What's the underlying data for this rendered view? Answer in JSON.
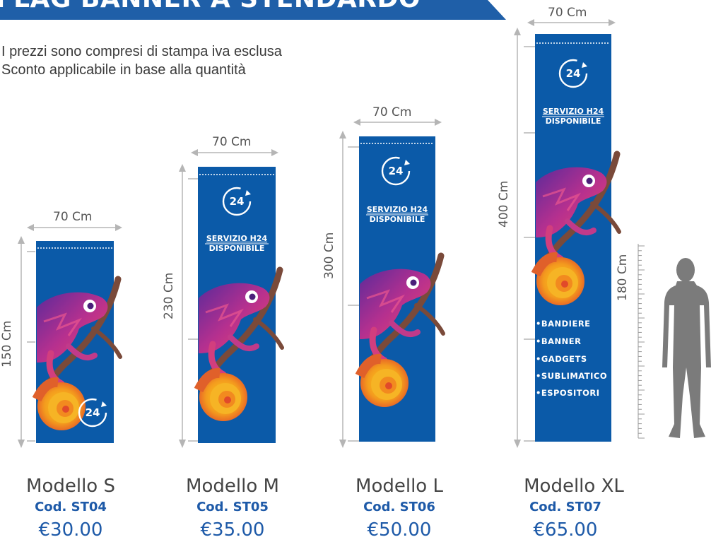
{
  "header": {
    "title": "FLAG BANNER A STENDARDO"
  },
  "intro": {
    "line1": "I prezzi sono compresi di stampa iva esclusa",
    "line2": "Sconto applicabile in base alla quantità"
  },
  "banner_text": {
    "badge": "24",
    "service_line1": "SERVIZIO H24",
    "service_line2": "DISPONIBILE",
    "bullets": [
      "•BANDIERE",
      "•BANNER",
      "•GADGETS",
      "•SUBLIMATICO",
      "•ESPOSITORI"
    ]
  },
  "models": [
    {
      "name": "Modello S",
      "code": "Cod. ST04",
      "price": "€30.00",
      "width_label": "70 Cm",
      "height_label": "150 Cm"
    },
    {
      "name": "Modello M",
      "code": "Cod. ST05",
      "price": "€35.00",
      "width_label": "70 Cm",
      "height_label": "230 Cm"
    },
    {
      "name": "Modello L",
      "code": "Cod. ST06",
      "price": "€50.00",
      "width_label": "70 Cm",
      "height_label": "300 Cm"
    },
    {
      "name": "Modello XL",
      "code": "Cod. ST07",
      "price": "€65.00",
      "width_label": "70 Cm",
      "height_label": "400 Cm"
    }
  ],
  "person": {
    "height_label": "180 Cm"
  },
  "colors": {
    "banner_blue": "#0b5aa8",
    "title_blue": "#1f5fa8",
    "accent_blue": "#1e5aa8",
    "ruler_gray": "#b5b5b5"
  }
}
